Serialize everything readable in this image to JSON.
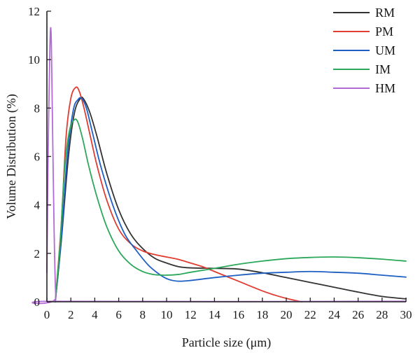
{
  "chart_data": {
    "type": "line",
    "xlabel": "Particle size (μm)",
    "ylabel": "Volume Distribution (%)",
    "xlim": [
      0,
      30
    ],
    "ylim": [
      0,
      12
    ],
    "xticks": [
      0,
      2,
      4,
      6,
      8,
      10,
      12,
      14,
      16,
      18,
      20,
      22,
      24,
      26,
      28,
      30
    ],
    "yticks": [
      0,
      2,
      4,
      6,
      8,
      10,
      12
    ],
    "grid": false,
    "legend": "top-right",
    "series": [
      {
        "name": "RM",
        "color": "#333333",
        "x": [
          0.7,
          1.2,
          1.8,
          2.3,
          2.8,
          3.1,
          3.6,
          4.2,
          5,
          6,
          7,
          8,
          9,
          10,
          11,
          12,
          14,
          16,
          18,
          20,
          22,
          24,
          26,
          28,
          30
        ],
        "y": [
          0,
          2.5,
          6,
          7.8,
          8.4,
          8.35,
          7.8,
          6.8,
          5.3,
          3.8,
          2.8,
          2.2,
          1.8,
          1.6,
          1.45,
          1.4,
          1.38,
          1.35,
          1.2,
          1.0,
          0.8,
          0.6,
          0.4,
          0.22,
          0.12
        ]
      },
      {
        "name": "PM",
        "color": "#e03c31",
        "x": [
          0.7,
          1.2,
          1.6,
          2.0,
          2.4,
          2.7,
          3.1,
          3.6,
          4.2,
          5,
          6,
          7,
          8,
          9,
          10,
          11,
          12,
          13,
          14,
          16,
          18,
          19,
          20,
          21,
          21.3
        ],
        "y": [
          0,
          3.2,
          6.8,
          8.4,
          8.85,
          8.7,
          8.0,
          6.9,
          5.6,
          4.2,
          3.0,
          2.4,
          2.1,
          1.95,
          1.85,
          1.75,
          1.6,
          1.45,
          1.25,
          0.85,
          0.45,
          0.28,
          0.14,
          0.03,
          0
        ]
      },
      {
        "name": "UM",
        "color": "#1f5fc4",
        "x": [
          0.7,
          1.2,
          1.7,
          2.2,
          2.6,
          2.9,
          3.3,
          3.8,
          4.5,
          5.5,
          6.5,
          7.5,
          8.5,
          9.5,
          10.2,
          11,
          12,
          14,
          16,
          18,
          20,
          22,
          24,
          26,
          28,
          30
        ],
        "y": [
          0,
          2.6,
          6.0,
          7.9,
          8.35,
          8.4,
          8.0,
          7.0,
          5.6,
          4.0,
          2.8,
          2.1,
          1.5,
          1.1,
          0.92,
          0.85,
          0.88,
          1.0,
          1.1,
          1.18,
          1.22,
          1.25,
          1.22,
          1.18,
          1.1,
          1.02
        ]
      },
      {
        "name": "IM",
        "color": "#2ca85a",
        "x": [
          0.7,
          1.1,
          1.5,
          1.9,
          2.3,
          2.6,
          3.0,
          3.5,
          4.2,
          5,
          6,
          7,
          8,
          9,
          10,
          11,
          12,
          14,
          16,
          18,
          20,
          22,
          24,
          26,
          28,
          30
        ],
        "y": [
          0,
          2.4,
          5.6,
          7.1,
          7.52,
          7.4,
          6.7,
          5.6,
          4.3,
          3.1,
          2.1,
          1.55,
          1.25,
          1.12,
          1.1,
          1.13,
          1.22,
          1.38,
          1.55,
          1.68,
          1.78,
          1.83,
          1.85,
          1.82,
          1.76,
          1.68
        ]
      },
      {
        "name": "HM",
        "color": "#b36ad6",
        "x": [
          0,
          0.1,
          0.25,
          0.35,
          0.45,
          0.6,
          0.75,
          1.0,
          30
        ],
        "y": [
          1.2,
          6.0,
          10.5,
          11.1,
          8.0,
          3.0,
          0.2,
          0.02,
          0.02
        ]
      }
    ]
  }
}
